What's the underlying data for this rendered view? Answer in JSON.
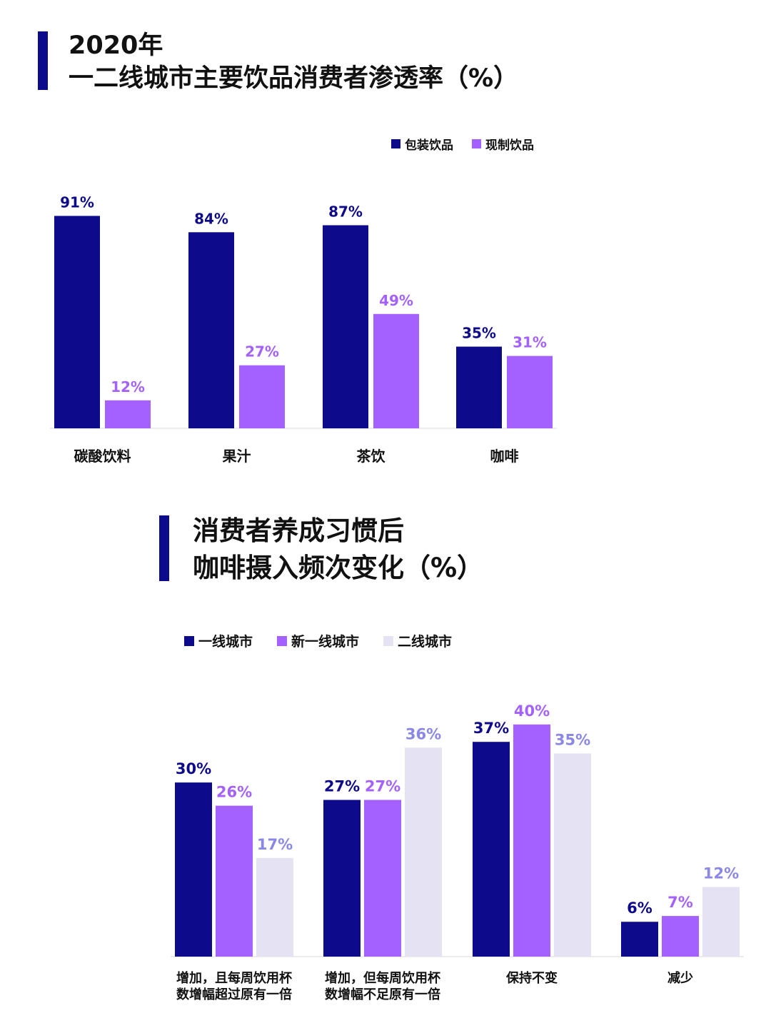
{
  "colors": {
    "dark_blue": "#0d0a8c",
    "purple": "#a461ff",
    "light": "#e4e2f3",
    "light_label": "#8a87e6",
    "axis": "#d8d8e2",
    "text": "#111111"
  },
  "chart1": {
    "title_line1": "2020年",
    "title_line2": "一二线城市主要饮品消费者渗透率（%）"
  },
  "chart2": {
    "title_line1": "消费者养成习惯后",
    "title_line2": "咖啡摄入频次变化（%）"
  },
  "chart_data": [
    {
      "type": "bar",
      "title": "2020年 一二线城市主要饮品消费者渗透率（%）",
      "categories": [
        "碳酸饮料",
        "果汁",
        "茶饮",
        "咖啡"
      ],
      "series": [
        {
          "name": "包装饮品",
          "values": [
            91,
            84,
            87,
            35
          ],
          "labels": [
            "91%",
            "84%",
            "87%",
            "35%"
          ],
          "color": "#0d0a8c"
        },
        {
          "name": "现制饮品",
          "values": [
            12,
            27,
            49,
            31
          ],
          "labels": [
            "12%",
            "27%",
            "49%",
            "31%"
          ],
          "color": "#a461ff"
        }
      ],
      "ylim": [
        0,
        100
      ],
      "grid": false,
      "legend": "top-right"
    },
    {
      "type": "bar",
      "title": "消费者养成习惯后 咖啡摄入频次变化（%）",
      "categories": [
        [
          "增加，且每周饮用杯",
          "数增幅超过原有一倍"
        ],
        [
          "增加，但每周饮用杯",
          "数增幅不足原有一倍"
        ],
        [
          "保持不变"
        ],
        [
          "减少"
        ]
      ],
      "series": [
        {
          "name": "一线城市",
          "values": [
            30,
            27,
            37,
            6
          ],
          "labels": [
            "30%",
            "27%",
            "37%",
            "6%"
          ],
          "color": "#0d0a8c"
        },
        {
          "name": "新一线城市",
          "values": [
            26,
            27,
            40,
            7
          ],
          "labels": [
            "26%",
            "27%",
            "40%",
            "7%"
          ],
          "color": "#a461ff"
        },
        {
          "name": "二线城市",
          "values": [
            17,
            36,
            35,
            12
          ],
          "labels": [
            "17%",
            "36%",
            "35%",
            "12%"
          ],
          "color": "#e4e2f3"
        }
      ],
      "ylim": [
        0,
        50
      ],
      "grid": false,
      "legend": "top-left"
    }
  ]
}
